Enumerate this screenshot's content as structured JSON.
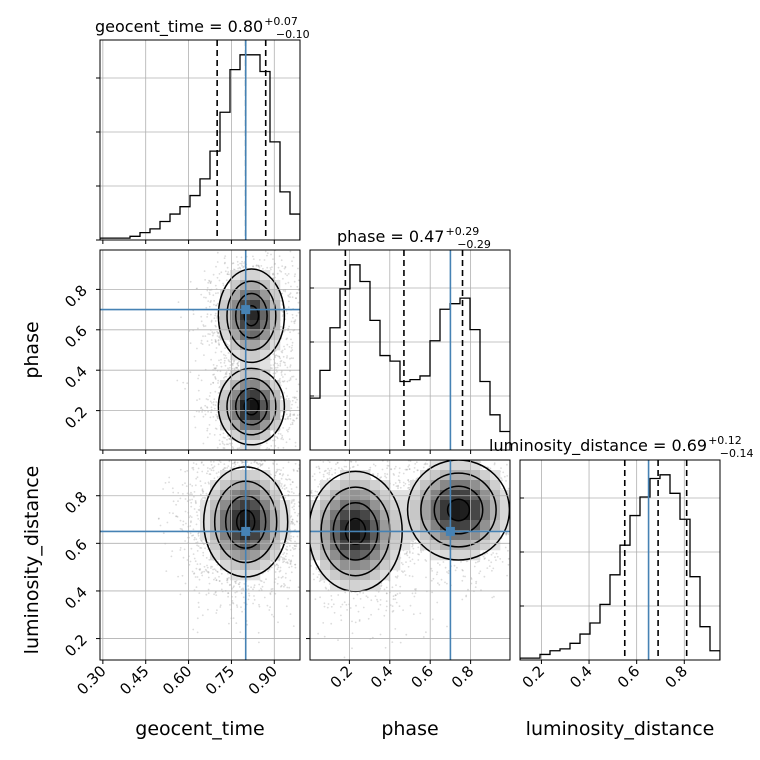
{
  "chart_data": {
    "type": "corner",
    "parameters": [
      "geocent_time",
      "phase",
      "luminosity_distance"
    ],
    "truths": {
      "geocent_time": 0.8,
      "phase": 0.7,
      "luminosity_distance": 0.65
    },
    "truth_color": "#4682b4",
    "hist_color": "#000000",
    "grid": true,
    "titles": [
      {
        "param": "geocent_time",
        "label": "geocent_time = 0.80",
        "upper": "+0.07",
        "lower": "−0.10"
      },
      {
        "param": "phase",
        "label": "phase = 0.47",
        "upper": "+0.29",
        "lower": "−0.29"
      },
      {
        "param": "luminosity_distance",
        "label": "luminosity_distance = 0.69",
        "upper": "+0.12",
        "lower": "−0.14"
      }
    ],
    "axes": {
      "geocent_time": {
        "range": [
          0.29,
          0.99
        ],
        "ticks": [
          0.3,
          0.45,
          0.6,
          0.75,
          0.9
        ],
        "tick_labels": [
          "0.30",
          "0.45",
          "0.60",
          "0.75",
          "0.90"
        ]
      },
      "phase": {
        "range": [
          0.005,
          0.995
        ],
        "ticks": [
          0.2,
          0.4,
          0.6,
          0.8
        ],
        "tick_labels": [
          "0.2",
          "0.4",
          "0.6",
          "0.8"
        ]
      },
      "luminosity_distance": {
        "range": [
          0.11,
          0.95
        ],
        "ticks": [
          0.2,
          0.4,
          0.6,
          0.8
        ],
        "tick_labels": [
          "0.2",
          "0.4",
          "0.6",
          "0.8"
        ]
      }
    },
    "quantiles": {
      "geocent_time": [
        0.7,
        0.8,
        0.87
      ],
      "phase": [
        0.18,
        0.47,
        0.76
      ],
      "luminosity_distance": [
        0.55,
        0.69,
        0.81
      ]
    },
    "histograms": {
      "geocent_time": {
        "edges": [
          0.29,
          0.325,
          0.36,
          0.395,
          0.43,
          0.465,
          0.5,
          0.535,
          0.57,
          0.605,
          0.64,
          0.675,
          0.71,
          0.745,
          0.78,
          0.815,
          0.85,
          0.885,
          0.92,
          0.955,
          0.99
        ],
        "counts": [
          0.01,
          0.01,
          0.01,
          0.02,
          0.04,
          0.06,
          0.1,
          0.14,
          0.18,
          0.24,
          0.33,
          0.48,
          0.69,
          0.92,
          1.0,
          1.0,
          0.91,
          0.53,
          0.26,
          0.14
        ]
      },
      "phase": {
        "edges": [
          0.005,
          0.0545,
          0.104,
          0.1535,
          0.203,
          0.2525,
          0.302,
          0.3515,
          0.401,
          0.4505,
          0.5,
          0.5495,
          0.599,
          0.6485,
          0.698,
          0.7475,
          0.797,
          0.8465,
          0.896,
          0.9455,
          0.995
        ],
        "counts": [
          0.28,
          0.43,
          0.66,
          0.87,
          1.0,
          0.91,
          0.7,
          0.51,
          0.48,
          0.37,
          0.38,
          0.4,
          0.59,
          0.76,
          0.79,
          0.82,
          0.65,
          0.37,
          0.19,
          0.1
        ]
      },
      "luminosity_distance": {
        "edges": [
          0.11,
          0.152,
          0.194,
          0.236,
          0.278,
          0.32,
          0.362,
          0.404,
          0.446,
          0.488,
          0.53,
          0.572,
          0.614,
          0.656,
          0.698,
          0.74,
          0.782,
          0.824,
          0.866,
          0.908,
          0.95
        ],
        "counts": [
          0.01,
          0.01,
          0.03,
          0.05,
          0.06,
          0.09,
          0.14,
          0.2,
          0.3,
          0.46,
          0.62,
          0.78,
          0.88,
          0.98,
          1.0,
          0.9,
          0.76,
          0.45,
          0.18,
          0.05
        ]
      }
    },
    "joint_modes": {
      "phase_vs_geocent_time": [
        {
          "x": 0.82,
          "y": 0.67,
          "sx": 0.055,
          "sy": 0.11,
          "w": 1.0
        },
        {
          "x": 0.82,
          "y": 0.22,
          "sx": 0.055,
          "sy": 0.09,
          "w": 1.1
        }
      ],
      "luminosity_distance_vs_geocent_time": [
        {
          "x": 0.8,
          "y": 0.69,
          "sx": 0.07,
          "sy": 0.11,
          "w": 1.0
        }
      ],
      "luminosity_distance_vs_phase": [
        {
          "x": 0.23,
          "y": 0.65,
          "sx": 0.11,
          "sy": 0.12,
          "w": 1.0
        },
        {
          "x": 0.74,
          "y": 0.74,
          "sx": 0.12,
          "sy": 0.1,
          "w": 1.0
        }
      ]
    }
  }
}
